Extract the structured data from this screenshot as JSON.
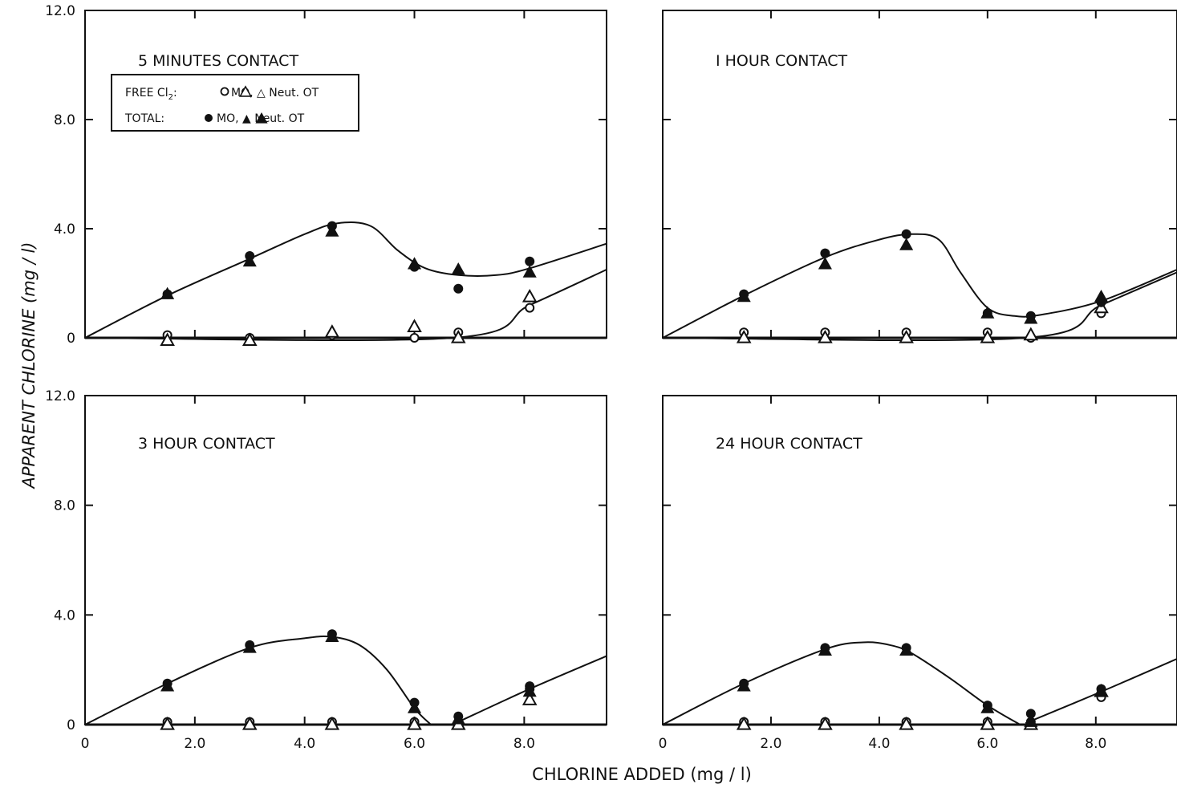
{
  "figure": {
    "y_axis_label": "APPARENT CHLORINE (mg / l)",
    "x_axis_label": "CHLORINE ADDED (mg / l)"
  },
  "legend": {
    "row1_label": "FREE Cl",
    "row1_sub": "2",
    "row1_items": "MO, △ Neut. OT",
    "row2_label": "TOTAL:",
    "row2_items": "MO, ▲ Neut. OT",
    "free_mo_marker": "open-circle",
    "free_ot_marker": "open-triangle",
    "total_mo_marker": "filled-circle",
    "total_ot_marker": "filled-triangle"
  },
  "chart_data": [
    {
      "type": "scatter",
      "title": "5 MINUTES CONTACT",
      "xlim": [
        0,
        9.5
      ],
      "ylim": [
        0,
        12.0
      ],
      "y_ticks": [
        "0",
        "4.0",
        "8.0",
        "12.0"
      ],
      "x_ticks": [],
      "x": [
        1.5,
        3.0,
        4.5,
        6.0,
        6.8,
        8.1
      ],
      "series": [
        {
          "name": "FREE Cl2 MO",
          "marker": "open-circle",
          "values": [
            0.1,
            0.0,
            0.1,
            0.0,
            0.2,
            1.1
          ]
        },
        {
          "name": "FREE Cl2 Neut. OT",
          "marker": "open-triangle",
          "values": [
            -0.1,
            -0.1,
            0.2,
            0.4,
            0.0,
            1.5
          ]
        },
        {
          "name": "TOTAL MO",
          "marker": "filled-circle",
          "values": [
            1.6,
            3.0,
            4.1,
            2.6,
            1.8,
            2.8
          ]
        },
        {
          "name": "TOTAL Neut. OT",
          "marker": "filled-triangle",
          "values": [
            1.6,
            2.8,
            3.9,
            2.7,
            2.5,
            2.4
          ]
        }
      ],
      "fitted_curves": [
        {
          "x": [
            0,
            1.5,
            3.0,
            4.0,
            4.6,
            5.2,
            5.7,
            6.2,
            6.8,
            7.5,
            8.1,
            9.5
          ],
          "y": [
            0,
            1.55,
            2.9,
            3.8,
            4.2,
            4.1,
            3.2,
            2.55,
            2.3,
            2.3,
            2.55,
            3.45
          ]
        },
        {
          "x": [
            0,
            6.7,
            8.1,
            9.5
          ],
          "y": [
            0,
            0,
            1.2,
            2.5
          ]
        }
      ]
    },
    {
      "type": "scatter",
      "title": "I HOUR CONTACT",
      "xlim": [
        0,
        9.5
      ],
      "ylim": [
        0,
        12.0
      ],
      "y_ticks": [],
      "x_ticks": [],
      "x": [
        1.5,
        3.0,
        4.5,
        6.0,
        6.8,
        8.1
      ],
      "series": [
        {
          "name": "FREE Cl2 MO",
          "marker": "open-circle",
          "values": [
            0.2,
            0.2,
            0.2,
            0.2,
            0.0,
            0.9
          ]
        },
        {
          "name": "FREE Cl2 Neut. OT",
          "marker": "open-triangle",
          "values": [
            0.0,
            0.0,
            0.0,
            0.0,
            0.1,
            1.1
          ]
        },
        {
          "name": "TOTAL MO",
          "marker": "filled-circle",
          "values": [
            1.6,
            3.1,
            3.8,
            0.9,
            0.8,
            1.3
          ]
        },
        {
          "name": "TOTAL Neut. OT",
          "marker": "filled-triangle",
          "values": [
            1.5,
            2.7,
            3.4,
            0.9,
            0.7,
            1.5
          ]
        }
      ],
      "fitted_curves": [
        {
          "x": [
            0,
            1.5,
            3.0,
            4.0,
            4.6,
            5.1,
            5.5,
            6.0,
            6.5,
            7.0,
            8.1,
            9.5
          ],
          "y": [
            0,
            1.55,
            2.95,
            3.6,
            3.8,
            3.6,
            2.4,
            1.1,
            0.8,
            0.85,
            1.35,
            2.5
          ]
        },
        {
          "x": [
            0,
            6.7,
            8.1,
            9.5
          ],
          "y": [
            0,
            0,
            1.2,
            2.4
          ]
        }
      ]
    },
    {
      "type": "scatter",
      "title": "3 HOUR CONTACT",
      "xlim": [
        0,
        9.5
      ],
      "ylim": [
        0,
        12.0
      ],
      "y_ticks": [
        "0",
        "4.0",
        "8.0",
        "12.0"
      ],
      "x_ticks": [
        "0",
        "2.0",
        "4.0",
        "6.0",
        "8.0"
      ],
      "x": [
        1.5,
        3.0,
        4.5,
        6.0,
        6.8,
        8.1
      ],
      "series": [
        {
          "name": "FREE Cl2 MO",
          "marker": "open-circle",
          "values": [
            0.1,
            0.1,
            0.1,
            0.1,
            0.1,
            1.3
          ]
        },
        {
          "name": "FREE Cl2 Neut. OT",
          "marker": "open-triangle",
          "values": [
            0.0,
            0.0,
            0.0,
            0.0,
            0.0,
            0.9
          ]
        },
        {
          "name": "TOTAL MO",
          "marker": "filled-circle",
          "values": [
            1.5,
            2.9,
            3.3,
            0.8,
            0.3,
            1.4
          ]
        },
        {
          "name": "TOTAL Neut. OT",
          "marker": "filled-triangle",
          "values": [
            1.4,
            2.8,
            3.2,
            0.6,
            0.2,
            1.2
          ]
        }
      ],
      "fitted_curves": [
        {
          "x": [
            0,
            1.5,
            3.0,
            4.0,
            4.5,
            5.0,
            5.5,
            6.0,
            6.3
          ],
          "y": [
            0,
            1.5,
            2.8,
            3.15,
            3.2,
            2.9,
            2.0,
            0.6,
            0
          ]
        },
        {
          "x": [
            6.8,
            8.1,
            9.5
          ],
          "y": [
            0.1,
            1.3,
            2.5
          ]
        },
        {
          "x": [
            0,
            9.5
          ],
          "y": [
            0,
            0
          ]
        }
      ]
    },
    {
      "type": "scatter",
      "title": "24 HOUR CONTACT",
      "xlim": [
        0,
        9.5
      ],
      "ylim": [
        0,
        12.0
      ],
      "y_ticks": [],
      "x_ticks": [
        "0",
        "2.0",
        "4.0",
        "6.0",
        "8.0"
      ],
      "x": [
        1.5,
        3.0,
        4.5,
        6.0,
        6.8,
        8.1
      ],
      "series": [
        {
          "name": "FREE Cl2 MO",
          "marker": "open-circle",
          "values": [
            0.1,
            0.1,
            0.1,
            0.1,
            0.1,
            1.0
          ]
        },
        {
          "name": "FREE Cl2 Neut. OT",
          "marker": "open-triangle",
          "values": [
            0.0,
            0.0,
            0.0,
            0.0,
            0.0,
            1.2
          ]
        },
        {
          "name": "TOTAL MO",
          "marker": "filled-circle",
          "values": [
            1.5,
            2.8,
            2.8,
            0.7,
            0.4,
            1.3
          ]
        },
        {
          "name": "TOTAL Neut. OT",
          "marker": "filled-triangle",
          "values": [
            1.4,
            2.7,
            2.7,
            0.6,
            0.1,
            1.2
          ]
        }
      ],
      "fitted_curves": [
        {
          "x": [
            0,
            1.5,
            3.0,
            3.7,
            4.2,
            4.6,
            5.3,
            6.0,
            6.6
          ],
          "y": [
            0,
            1.5,
            2.75,
            3.0,
            2.9,
            2.6,
            1.7,
            0.7,
            0
          ]
        },
        {
          "x": [
            6.7,
            8.1,
            9.5
          ],
          "y": [
            0.05,
            1.2,
            2.4
          ]
        },
        {
          "x": [
            0,
            9.5
          ],
          "y": [
            0,
            0
          ]
        }
      ]
    }
  ]
}
